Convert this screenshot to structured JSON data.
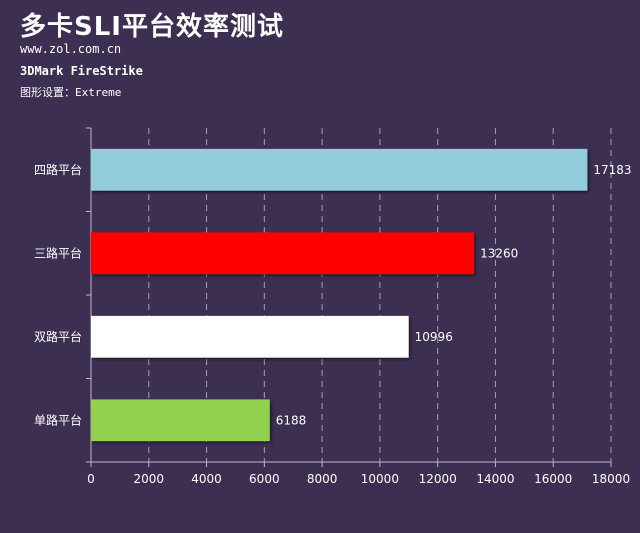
{
  "header": {
    "title": "多卡SLI平台效率测试",
    "site": "www.zol.com.cn",
    "benchmark": "3DMark FireStrike",
    "setting": "图形设置：Extreme"
  },
  "chart_data": {
    "type": "bar",
    "orientation": "horizontal",
    "categories": [
      "四路平台",
      "三路平台",
      "双路平台",
      "单路平台"
    ],
    "values": [
      17183,
      13260,
      10996,
      6188
    ],
    "colors": [
      "#92cddc",
      "#ff0000",
      "#ffffff",
      "#92d050"
    ],
    "xlim": [
      0,
      18000
    ],
    "xticks": [
      0,
      2000,
      4000,
      6000,
      8000,
      10000,
      12000,
      14000,
      16000,
      18000
    ],
    "grid": "vertical dashed",
    "title": "多卡SLI平台效率测试",
    "xlabel": "",
    "ylabel": ""
  }
}
